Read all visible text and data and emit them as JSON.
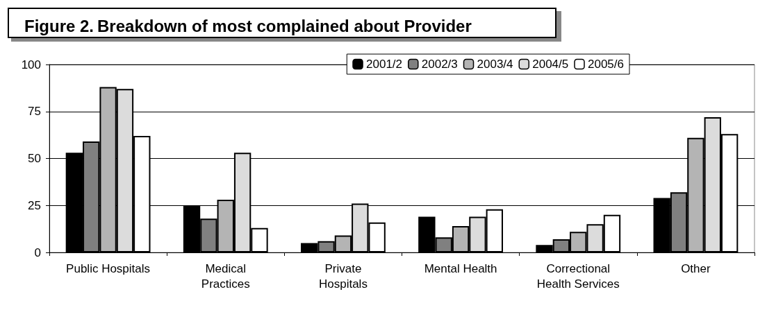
{
  "chart_data": {
    "type": "bar",
    "title": "Figure 2. Breakdown of most complained about Provider",
    "categories": [
      "Public Hospitals",
      "Medical\nPractices",
      "Private\nHospitals",
      "Mental Health",
      "Correctional\nHealth Services",
      "Other"
    ],
    "series": [
      {
        "name": "2001/2",
        "color": "#000000",
        "values": [
          53,
          25,
          5,
          19,
          4,
          29
        ]
      },
      {
        "name": "2002/3",
        "color": "#808080",
        "values": [
          59,
          18,
          6,
          8,
          7,
          32
        ]
      },
      {
        "name": "2003/4",
        "color": "#b4b4b4",
        "values": [
          88,
          28,
          9,
          14,
          11,
          61
        ]
      },
      {
        "name": "2004/5",
        "color": "#dcdcdc",
        "values": [
          87,
          53,
          26,
          19,
          15,
          72
        ]
      },
      {
        "name": "2005/6",
        "color": "#ffffff",
        "values": [
          62,
          13,
          16,
          23,
          20,
          63
        ]
      }
    ],
    "ylim": [
      0,
      100
    ],
    "yticks": [
      0,
      25,
      50,
      75,
      100
    ],
    "grid": "y",
    "legend": "top right"
  }
}
